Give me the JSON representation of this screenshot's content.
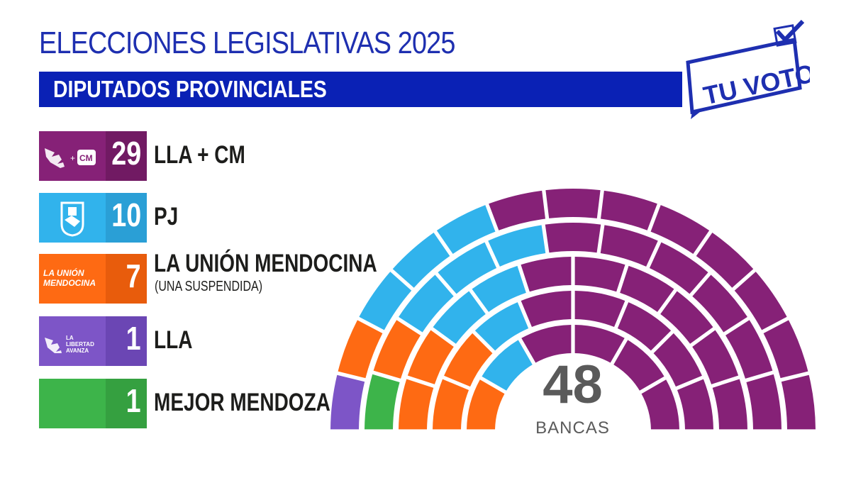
{
  "header": {
    "title": "ELECCIONES LEGISLATIVAS 2025",
    "subtitle": "DIPUTADOS PROVINCIALES",
    "badge_text": "TU VOTO"
  },
  "colors": {
    "title": "#1e2fb0",
    "bar": "#0a21b5"
  },
  "legend": [
    {
      "name": "LLA + CM",
      "seats": "29",
      "note": "",
      "color": "#862177",
      "count_bg": "#711a63",
      "logo": "lla-cm-logo",
      "logo_text": "CM"
    },
    {
      "name": "PJ",
      "seats": "10",
      "note": "",
      "color": "#31b3ec",
      "count_bg": "#2a9fd6",
      "logo": "pj-shield-logo",
      "logo_text": ""
    },
    {
      "name": "LA UNIÓN MENDOCINA",
      "seats": "7",
      "note": "(UNA SUSPENDIDA)",
      "color": "#fe6a13",
      "count_bg": "#e85c0c",
      "logo": "union-mendocina-logo",
      "logo_text": "LA UNIÓN MENDOCINA"
    },
    {
      "name": "LLA",
      "seats": "1",
      "note": "",
      "color": "#7d55c7",
      "count_bg": "#6b46b4",
      "logo": "la-libertad-avanza-logo",
      "logo_text": "LA LIBERTAD AVANZA"
    },
    {
      "name": "MEJOR MENDOZA",
      "seats": "1",
      "note": "",
      "color": "#3db44a",
      "count_bg": "#35a040",
      "logo": "",
      "logo_text": ""
    }
  ],
  "chart_data": {
    "type": "parliament",
    "total_seats": 48,
    "total_label": "BANCAS",
    "series": [
      {
        "name": "LLA + CM",
        "values": [
          29
        ]
      },
      {
        "name": "PJ",
        "values": [
          10
        ]
      },
      {
        "name": "LA UNIÓN MENDOCINA",
        "values": [
          7
        ]
      },
      {
        "name": "LLA",
        "values": [
          1
        ]
      },
      {
        "name": "MEJOR MENDOZA",
        "values": [
          1
        ]
      }
    ]
  }
}
